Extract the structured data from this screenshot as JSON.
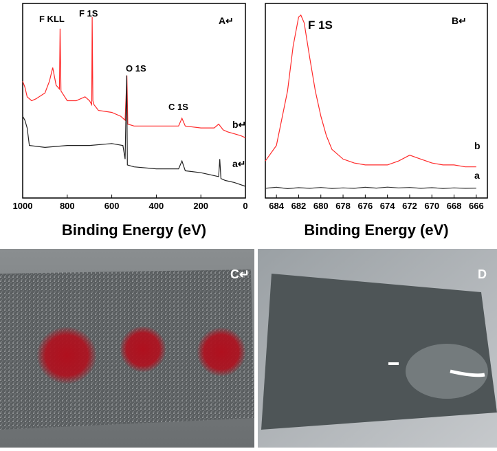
{
  "chart_data": [
    {
      "type": "line",
      "xlabel": "Binding Energy (eV)",
      "xlim": [
        1000,
        0
      ],
      "xticks": [
        1000,
        800,
        600,
        400,
        200,
        0
      ],
      "ylim": [
        0,
        100
      ],
      "annotations": [
        "F KLL",
        "F 1S",
        "O 1S",
        "C 1S",
        "A↵"
      ],
      "series": [
        {
          "name": "b↵",
          "color": "#ff2a2a",
          "x": [
            1000,
            990,
            980,
            960,
            940,
            900,
            880,
            865,
            850,
            835,
            832,
            828,
            800,
            760,
            720,
            700,
            690,
            688,
            685,
            680,
            660,
            600,
            560,
            540,
            532,
            528,
            500,
            400,
            300,
            285,
            270,
            200,
            140,
            120,
            100,
            80,
            50,
            20,
            0
          ],
          "values": [
            60,
            57,
            52,
            50,
            51,
            54,
            60,
            67,
            58,
            56,
            87,
            55,
            50,
            50,
            52,
            50,
            48,
            93,
            50,
            48,
            45,
            44,
            42,
            40,
            63,
            38,
            37,
            37,
            37,
            41,
            37,
            36,
            36,
            38,
            35,
            34,
            33,
            32,
            31
          ]
        },
        {
          "name": "a↵",
          "color": "#222222",
          "x": [
            1000,
            990,
            980,
            970,
            900,
            800,
            700,
            600,
            550,
            540,
            533,
            530,
            500,
            400,
            300,
            285,
            270,
            200,
            120,
            115,
            110,
            90,
            50,
            0
          ],
          "values": [
            42,
            40,
            36,
            27,
            26,
            27,
            27,
            28,
            27,
            20,
            63,
            17,
            16,
            15,
            15,
            19,
            14,
            13,
            11,
            20,
            10,
            9,
            8,
            6
          ]
        }
      ]
    },
    {
      "type": "line",
      "xlabel": "Binding Energy (eV)",
      "xlim": [
        685,
        665
      ],
      "xticks": [
        684,
        682,
        680,
        678,
        676,
        674,
        672,
        670,
        668,
        666
      ],
      "ylim": [
        0,
        100
      ],
      "annotations": [
        "F 1S",
        "B↵"
      ],
      "series": [
        {
          "name": "b",
          "color": "#ff2a2a",
          "x": [
            685,
            684,
            683,
            682.5,
            682,
            681.8,
            681.5,
            681,
            680.5,
            680,
            679.5,
            679,
            678,
            677,
            676,
            675,
            674,
            673,
            672,
            671,
            670,
            669,
            668,
            667,
            666
          ],
          "values": [
            19,
            27,
            55,
            78,
            93,
            94,
            90,
            72,
            55,
            42,
            32,
            25,
            20,
            18,
            17,
            17,
            17,
            19,
            22,
            20,
            18,
            17,
            17,
            16,
            16
          ]
        },
        {
          "name": "a",
          "color": "#333333",
          "x": [
            685,
            684,
            683,
            682,
            681,
            680,
            679,
            678,
            677,
            676,
            675,
            674,
            673,
            672,
            671,
            670,
            669,
            668,
            667,
            666
          ],
          "values": [
            5,
            5.5,
            4.8,
            5.3,
            5,
            5.4,
            4.9,
            5.2,
            5,
            5.5,
            5.1,
            5.6,
            5.2,
            5.4,
            5,
            5.3,
            4.9,
            5.2,
            5,
            5.1
          ]
        }
      ]
    }
  ],
  "photos": [
    {
      "label": "C↵"
    },
    {
      "label": "D"
    }
  ]
}
